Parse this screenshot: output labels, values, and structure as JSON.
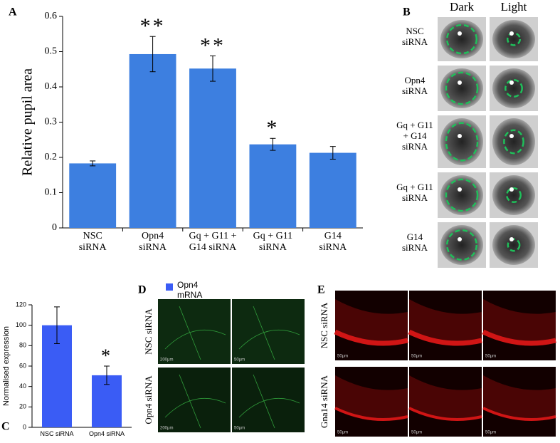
{
  "chart_data": [
    {
      "type": "bar",
      "panel": "A",
      "ylabel": "Relative pupil area",
      "categories": [
        "NSC\nsiRNA",
        "Opn4\nsiRNA",
        "Gq + G11 +\nG14 siRNA",
        "Gq + G11\nsiRNA",
        "G14\nsiRNA"
      ],
      "values": [
        0.183,
        0.493,
        0.452,
        0.237,
        0.213
      ],
      "errors": [
        0.007,
        0.05,
        0.036,
        0.017,
        0.018
      ],
      "color": "#3d7fe0",
      "ylim": [
        0,
        0.6
      ],
      "yticks": [
        0,
        0.1,
        0.2,
        0.3,
        0.4,
        0.5,
        0.6
      ],
      "annotations": [
        {
          "category": "Opn4\nsiRNA",
          "text": "**"
        },
        {
          "category": "Gq + G11 +\nG14 siRNA",
          "text": "**"
        },
        {
          "category": "Gq + G11\nsiRNA",
          "text": "*"
        }
      ]
    },
    {
      "type": "bar",
      "panel": "C",
      "ylabel": "Normalised expression",
      "categories": [
        "NSC siRNA",
        "Opn4 siRNA"
      ],
      "series": [
        {
          "name": "Opn4\nmRNA",
          "color": "#3a5cf5",
          "values": [
            100,
            51
          ],
          "errors": [
            18,
            9
          ]
        }
      ],
      "legend": "upper right",
      "ylim": [
        0,
        120
      ],
      "yticks": [
        0,
        20,
        40,
        60,
        80,
        100,
        120
      ],
      "annotations": [
        {
          "category": "Opn4 siRNA",
          "text": "*"
        }
      ]
    }
  ],
  "panel_b": {
    "label": "B",
    "columns": [
      "Dark",
      "Light"
    ],
    "rows": [
      "NSC\nsiRNA",
      "Opn4\nsiRNA",
      "Gq + G11\n+ G14\nsiRNA",
      "Gq + G11\nsiRNA",
      "G14\nsiRNA"
    ]
  },
  "panel_d": {
    "label": "D",
    "rows": [
      "NSC siRNA",
      "Opn4 siRNA"
    ],
    "scale_labels": [
      "200μm",
      "50μm",
      "200μm",
      "50μm"
    ]
  },
  "panel_e": {
    "label": "E",
    "rows": [
      "NSC siRNA",
      "Gna14 siRNA"
    ],
    "scale_labels": [
      "50μm",
      "50μm",
      "50μm",
      "50μm",
      "50μm",
      "50μm"
    ]
  }
}
